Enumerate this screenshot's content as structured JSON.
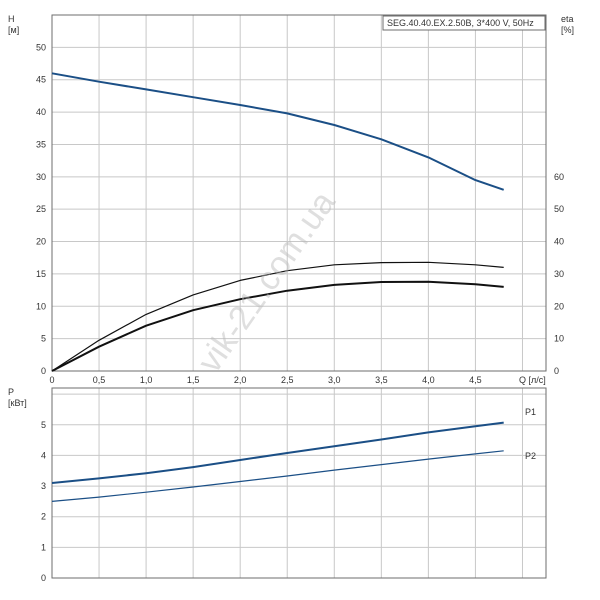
{
  "title": "SEG.40.40.EX.2.50B, 3*400 V, 50Hz",
  "watermark": "vik-21.com.ua",
  "colors": {
    "dark_blue": "#1b4f86",
    "black": "#111111",
    "grid": "#c8c8c8"
  },
  "chart_data": [
    {
      "type": "line",
      "xlabel": "Q [л/с]",
      "x_ticks": [
        "0",
        "0,5",
        "1,0",
        "1,5",
        "2,0",
        "2,5",
        "3,0",
        "3,5",
        "4,0",
        "4,5"
      ],
      "xlim": [
        0,
        5.25
      ],
      "y_left": {
        "label_line1": "H",
        "label_line2": "[м]",
        "ticks": [
          "0",
          "5",
          "10",
          "15",
          "20",
          "25",
          "30",
          "35",
          "40",
          "45",
          "50"
        ],
        "lim": [
          0,
          55
        ]
      },
      "y_right": {
        "label_line1": "eta",
        "label_line2": "[%]",
        "ticks": [
          "0",
          "10",
          "20",
          "30",
          "40",
          "50",
          "60"
        ],
        "lim": [
          0,
          110
        ]
      },
      "grid": true,
      "series": [
        {
          "axis": "left",
          "x": [
            0,
            0.5,
            1.0,
            1.5,
            2.0,
            2.5,
            3.0,
            3.5,
            4.0,
            4.5,
            4.8
          ],
          "y": [
            46,
            44.7,
            43.5,
            42.3,
            41.1,
            39.8,
            38.0,
            35.8,
            33.0,
            29.5,
            28.0
          ]
        },
        {
          "axis": "right",
          "x": [
            0,
            0.5,
            1.0,
            1.5,
            2.0,
            2.5,
            3.0,
            3.5,
            4.0,
            4.5,
            4.8
          ],
          "y": [
            0,
            9.5,
            17.5,
            23.5,
            28.0,
            31.0,
            32.8,
            33.5,
            33.6,
            32.8,
            32.0
          ]
        },
        {
          "axis": "right",
          "x": [
            0,
            0.5,
            1.0,
            1.5,
            2.0,
            2.5,
            3.0,
            3.5,
            4.0,
            4.5,
            4.8
          ],
          "y": [
            0,
            7.5,
            14.0,
            18.8,
            22.2,
            24.8,
            26.6,
            27.5,
            27.6,
            26.8,
            26.0
          ]
        }
      ]
    },
    {
      "type": "line",
      "y_left": {
        "label_line1": "P",
        "label_line2": "[кВт]",
        "ticks": [
          "0",
          "1",
          "2",
          "3",
          "4",
          "5"
        ],
        "lim": [
          0,
          6.2
        ]
      },
      "xlim": [
        0,
        5.25
      ],
      "grid": true,
      "series": [
        {
          "name": "P1",
          "x": [
            0,
            0.5,
            1.0,
            1.5,
            2.0,
            2.5,
            3.0,
            3.5,
            4.0,
            4.5,
            4.8
          ],
          "y": [
            3.1,
            3.25,
            3.42,
            3.62,
            3.85,
            4.08,
            4.3,
            4.52,
            4.75,
            4.95,
            5.07
          ]
        },
        {
          "name": "P2",
          "x": [
            0,
            0.5,
            1.0,
            1.5,
            2.0,
            2.5,
            3.0,
            3.5,
            4.0,
            4.5,
            4.8
          ],
          "y": [
            2.5,
            2.64,
            2.8,
            2.97,
            3.15,
            3.33,
            3.52,
            3.7,
            3.88,
            4.05,
            4.15
          ]
        }
      ]
    }
  ]
}
